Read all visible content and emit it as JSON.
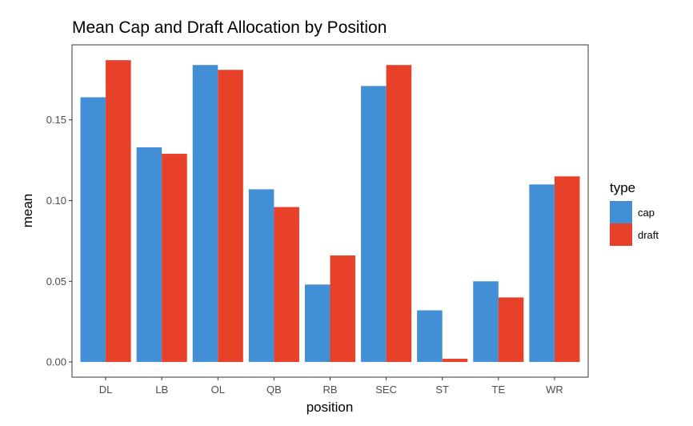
{
  "chart_data": {
    "type": "bar",
    "title": "Mean Cap and Draft Allocation by Position",
    "xlabel": "position",
    "ylabel": "mean",
    "categories": [
      "DL",
      "LB",
      "OL",
      "QB",
      "RB",
      "SEC",
      "ST",
      "TE",
      "WR"
    ],
    "series": [
      {
        "name": "cap",
        "color": "#428fd6",
        "values": [
          0.164,
          0.133,
          0.184,
          0.107,
          0.048,
          0.171,
          0.032,
          0.05,
          0.11
        ]
      },
      {
        "name": "draft",
        "color": "#e8412a",
        "values": [
          0.187,
          0.129,
          0.181,
          0.096,
          0.066,
          0.184,
          0.002,
          0.04,
          0.115
        ]
      }
    ],
    "yticks": [
      0.0,
      0.05,
      0.1,
      0.15
    ],
    "ytick_labels": [
      "0.00",
      "0.05",
      "0.10",
      "0.15"
    ],
    "ylim": [
      -0.0094,
      0.1965
    ],
    "grid": false,
    "legend": {
      "title": "type",
      "placement": "right"
    }
  }
}
